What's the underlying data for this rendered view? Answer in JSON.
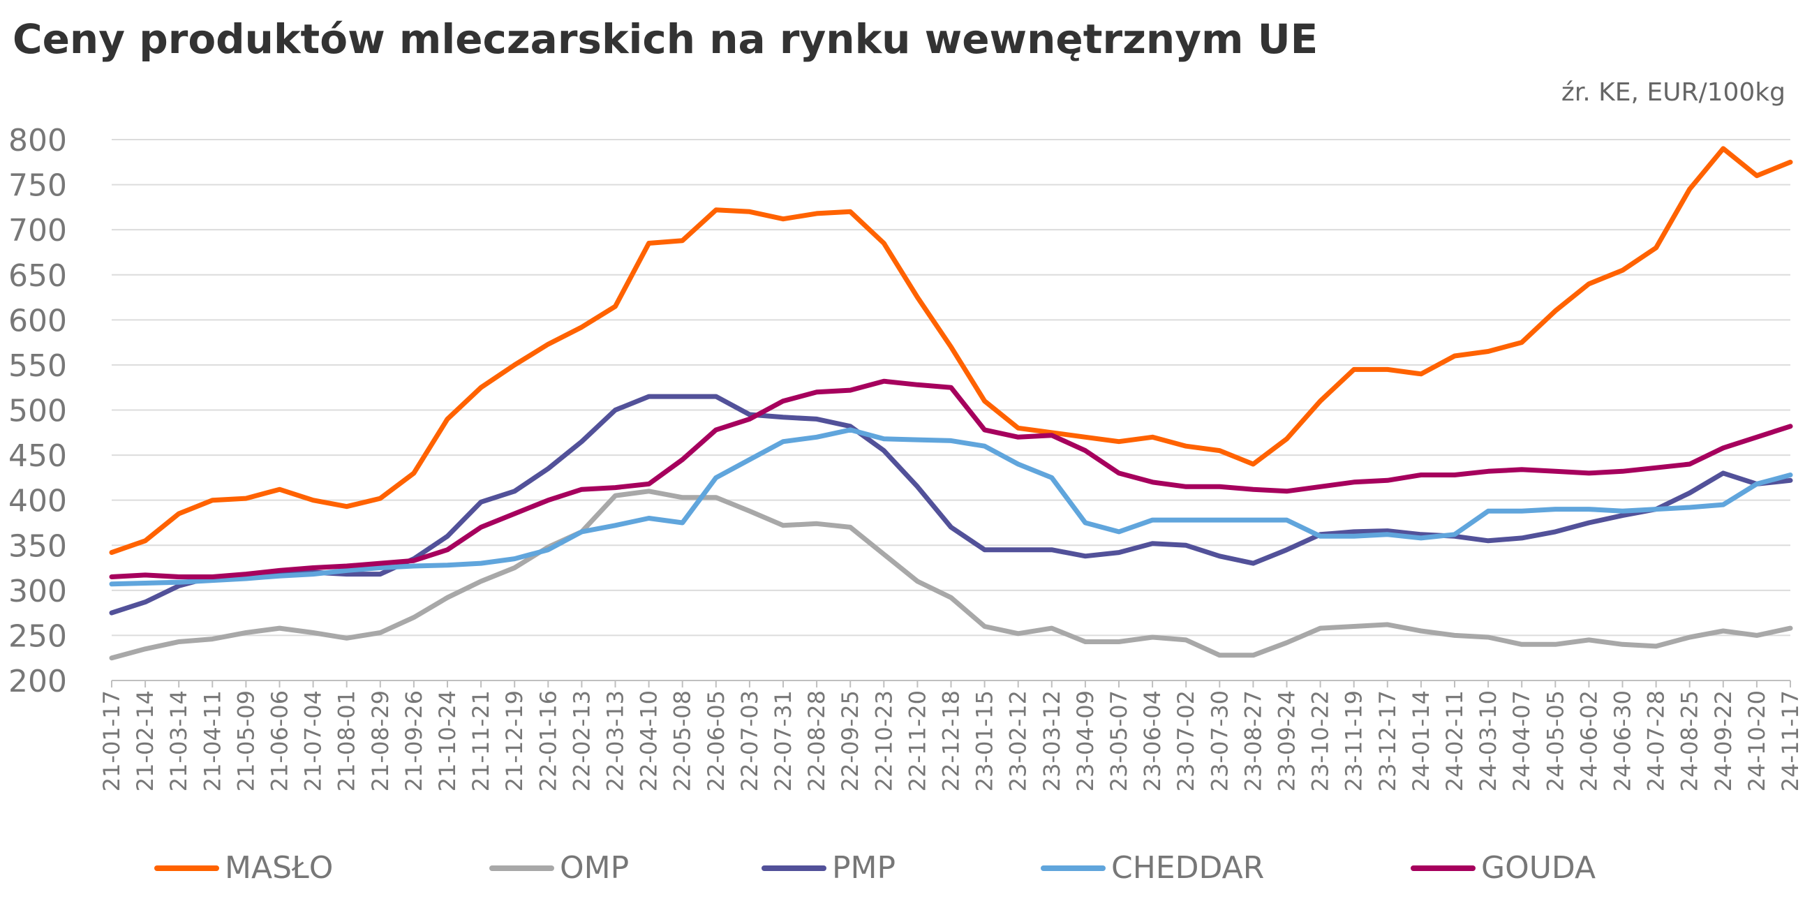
{
  "chart_data": {
    "type": "line",
    "title": "Ceny produktów mleczarskich na rynku wewnętrznym UE",
    "subtitle": "źr. KE, EUR/100kg",
    "xlabel": "",
    "ylabel": "",
    "ylim": [
      200,
      800
    ],
    "yticks": [
      "800",
      "750",
      "700",
      "650",
      "600",
      "550",
      "500",
      "450",
      "400",
      "350",
      "300",
      "250",
      "200"
    ],
    "grid": true,
    "legend_position": "bottom",
    "categories": [
      "21-01-17",
      "21-02-14",
      "21-03-14",
      "21-04-11",
      "21-05-09",
      "21-06-06",
      "21-07-04",
      "21-08-01",
      "21-08-29",
      "21-09-26",
      "21-10-24",
      "21-11-21",
      "21-12-19",
      "22-01-16",
      "22-02-13",
      "22-03-13",
      "22-04-10",
      "22-05-08",
      "22-06-05",
      "22-07-03",
      "22-07-31",
      "22-08-28",
      "22-09-25",
      "22-10-23",
      "22-11-20",
      "22-12-18",
      "23-01-15",
      "23-02-12",
      "23-03-12",
      "23-04-09",
      "23-05-07",
      "23-06-04",
      "23-07-02",
      "23-07-30",
      "23-08-27",
      "23-09-24",
      "23-10-22",
      "23-11-19",
      "23-12-17",
      "24-01-14",
      "24-02-11",
      "24-03-10",
      "24-04-07",
      "24-05-05",
      "24-06-02",
      "24-06-30",
      "24-07-28",
      "24-08-25",
      "24-09-22",
      "24-10-20",
      "24-11-17"
    ],
    "series": [
      {
        "name": "MASŁO",
        "color": "#ff6200",
        "values": [
          342,
          355,
          385,
          400,
          402,
          412,
          400,
          393,
          402,
          430,
          490,
          525,
          550,
          573,
          592,
          615,
          685,
          688,
          722,
          720,
          712,
          718,
          720,
          685,
          625,
          570,
          510,
          480,
          475,
          470,
          465,
          470,
          460,
          455,
          440,
          468,
          510,
          545,
          545,
          540,
          560,
          565,
          575,
          610,
          640,
          655,
          680,
          745,
          790,
          760,
          775
        ]
      },
      {
        "name": "OMP",
        "color": "#a8a8a8",
        "values": [
          225,
          235,
          243,
          246,
          253,
          258,
          253,
          247,
          253,
          270,
          292,
          310,
          325,
          348,
          365,
          405,
          410,
          403,
          403,
          388,
          372,
          374,
          370,
          340,
          310,
          292,
          260,
          252,
          258,
          243,
          243,
          248,
          245,
          228,
          228,
          242,
          258,
          260,
          262,
          255,
          250,
          248,
          240,
          240,
          245,
          240,
          238,
          248,
          255,
          250,
          258
        ]
      },
      {
        "name": "PMP",
        "color": "#525199",
        "values": [
          275,
          287,
          305,
          315,
          315,
          320,
          320,
          318,
          318,
          335,
          360,
          398,
          410,
          435,
          465,
          500,
          515,
          515,
          515,
          495,
          492,
          490,
          482,
          455,
          415,
          370,
          345,
          345,
          345,
          338,
          342,
          352,
          350,
          338,
          330,
          345,
          362,
          365,
          366,
          362,
          360,
          355,
          358,
          365,
          375,
          383,
          390,
          408,
          430,
          418,
          422
        ]
      },
      {
        "name": "CHEDDAR",
        "color": "#60a5dc",
        "values": [
          307,
          308,
          309,
          311,
          313,
          316,
          318,
          322,
          325,
          327,
          328,
          330,
          335,
          345,
          365,
          372,
          380,
          375,
          425,
          445,
          465,
          470,
          478,
          468,
          467,
          466,
          460,
          440,
          425,
          375,
          365,
          378,
          378,
          378,
          378,
          378,
          360,
          360,
          362,
          358,
          362,
          388,
          388,
          390,
          390,
          388,
          390,
          392,
          395,
          418,
          428
        ]
      },
      {
        "name": "GOUDA",
        "color": "#a6005d",
        "values": [
          315,
          317,
          315,
          315,
          318,
          322,
          325,
          327,
          330,
          333,
          345,
          370,
          385,
          400,
          412,
          414,
          418,
          445,
          478,
          490,
          510,
          520,
          522,
          532,
          528,
          525,
          478,
          470,
          472,
          455,
          430,
          420,
          415,
          415,
          412,
          410,
          415,
          420,
          422,
          428,
          428,
          432,
          434,
          432,
          430,
          432,
          436,
          440,
          458,
          470,
          482
        ]
      }
    ]
  }
}
